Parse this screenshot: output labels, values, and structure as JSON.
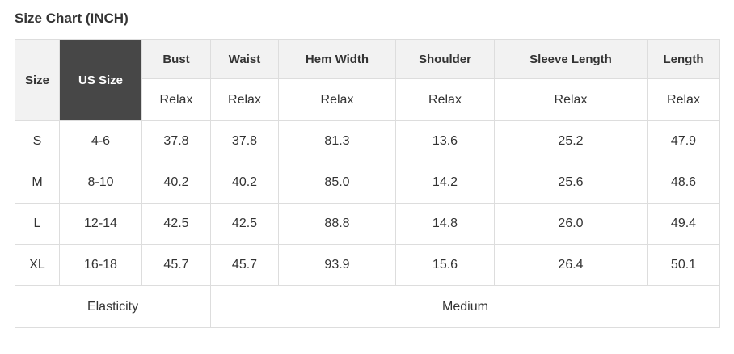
{
  "title": "Size Chart (INCH)",
  "colors": {
    "header_bg": "#f2f2f2",
    "us_size_bg": "#474747",
    "us_size_text": "#ffffff",
    "border": "#dddddd",
    "text": "#333333"
  },
  "table": {
    "size_label": "Size",
    "us_size_label": "US Size",
    "measure_columns": [
      {
        "label": "Bust",
        "sub": "Relax"
      },
      {
        "label": "Waist",
        "sub": "Relax"
      },
      {
        "label": "Hem Width",
        "sub": "Relax"
      },
      {
        "label": "Shoulder",
        "sub": "Relax"
      },
      {
        "label": "Sleeve Length",
        "sub": "Relax"
      },
      {
        "label": "Length",
        "sub": "Relax"
      }
    ],
    "rows": [
      [
        "S",
        "4-6",
        "37.8",
        "37.8",
        "81.3",
        "13.6",
        "25.2",
        "47.9"
      ],
      [
        "M",
        "8-10",
        "40.2",
        "40.2",
        "85.0",
        "14.2",
        "25.6",
        "48.6"
      ],
      [
        "L",
        "12-14",
        "42.5",
        "42.5",
        "88.8",
        "14.8",
        "26.0",
        "49.4"
      ],
      [
        "XL",
        "16-18",
        "45.7",
        "45.7",
        "93.9",
        "15.6",
        "26.4",
        "50.1"
      ]
    ],
    "footer_label": "Elasticity",
    "footer_value": "Medium"
  }
}
